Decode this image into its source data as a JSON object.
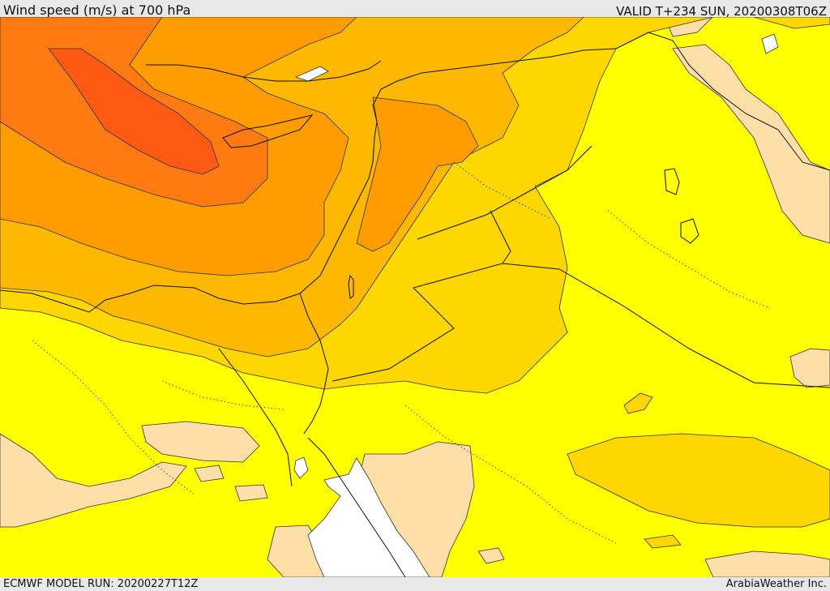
{
  "header": {
    "title": "Wind speed (m/s) at 700 hPa",
    "valid_time": "VALID T+234 SUN, 20200308T06Z"
  },
  "footer": {
    "model_run": "ECMWF MODEL RUN: 20200227T12Z",
    "credit": "ArabiaWeather Inc."
  },
  "map": {
    "field": "wind speed at 700 hPa",
    "color_bands": [
      {
        "name": "band-0",
        "color": "#FFFFFF"
      },
      {
        "name": "band-1",
        "color": "#FFDFA8"
      },
      {
        "name": "band-2",
        "color": "#FFFF00"
      },
      {
        "name": "band-3",
        "color": "#FFD700"
      },
      {
        "name": "band-4",
        "color": "#FFB800"
      },
      {
        "name": "band-5",
        "color": "#FF9C00"
      },
      {
        "name": "band-6",
        "color": "#FF7A10"
      },
      {
        "name": "band-7",
        "color": "#FF5A14"
      }
    ]
  }
}
